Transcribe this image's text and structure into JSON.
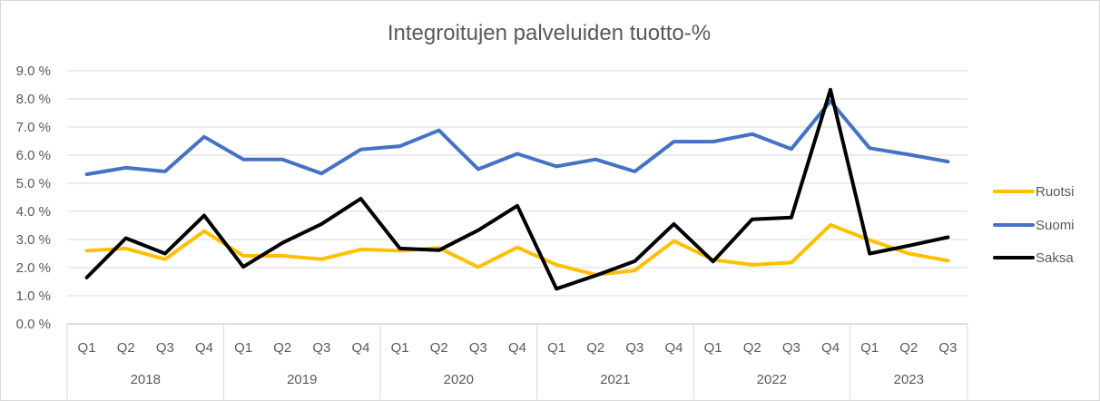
{
  "chart_data": {
    "type": "line",
    "title": "Integroitujen palveluiden tuotto-%",
    "ylim": [
      0,
      9
    ],
    "y_ticks": [
      "0.0 %",
      "1.0 %",
      "2.0 %",
      "3.0 %",
      "4.0 %",
      "5.0 %",
      "6.0 %",
      "7.0 %",
      "8.0 %",
      "9.0 %"
    ],
    "categories": [
      "Q1",
      "Q2",
      "Q3",
      "Q4",
      "Q1",
      "Q2",
      "Q3",
      "Q4",
      "Q1",
      "Q2",
      "Q3",
      "Q4",
      "Q1",
      "Q2",
      "Q3",
      "Q4",
      "Q1",
      "Q2",
      "Q3",
      "Q4",
      "Q1",
      "Q2",
      "Q3"
    ],
    "years": [
      {
        "label": "2018",
        "count": 4
      },
      {
        "label": "2019",
        "count": 4
      },
      {
        "label": "2020",
        "count": 4
      },
      {
        "label": "2021",
        "count": 4
      },
      {
        "label": "2022",
        "count": 4
      },
      {
        "label": "2023",
        "count": 3
      }
    ],
    "legend_position": "right",
    "grid": true,
    "series": [
      {
        "name": "Ruotsi",
        "color": "#FFC000",
        "values": [
          2.6,
          2.68,
          2.3,
          3.3,
          2.42,
          2.42,
          2.3,
          2.65,
          2.6,
          2.7,
          2.02,
          2.72,
          2.1,
          1.75,
          1.9,
          2.95,
          2.28,
          2.1,
          2.18,
          3.52,
          2.98,
          2.5,
          2.25
        ]
      },
      {
        "name": "Suomi",
        "color": "#4472C4",
        "values": [
          5.32,
          5.55,
          5.42,
          6.65,
          5.85,
          5.85,
          5.35,
          6.2,
          6.32,
          6.88,
          5.5,
          6.05,
          5.6,
          5.85,
          5.42,
          6.48,
          6.48,
          6.75,
          6.22,
          7.92,
          6.25,
          6.02,
          5.77
        ]
      },
      {
        "name": "Saksa",
        "color": "#000000",
        "values": [
          1.65,
          3.05,
          2.5,
          3.85,
          2.03,
          2.88,
          3.55,
          4.45,
          2.68,
          2.62,
          3.33,
          4.2,
          1.25,
          1.72,
          2.23,
          3.55,
          2.22,
          3.72,
          3.78,
          8.33,
          2.5,
          2.78,
          3.08
        ]
      }
    ]
  }
}
